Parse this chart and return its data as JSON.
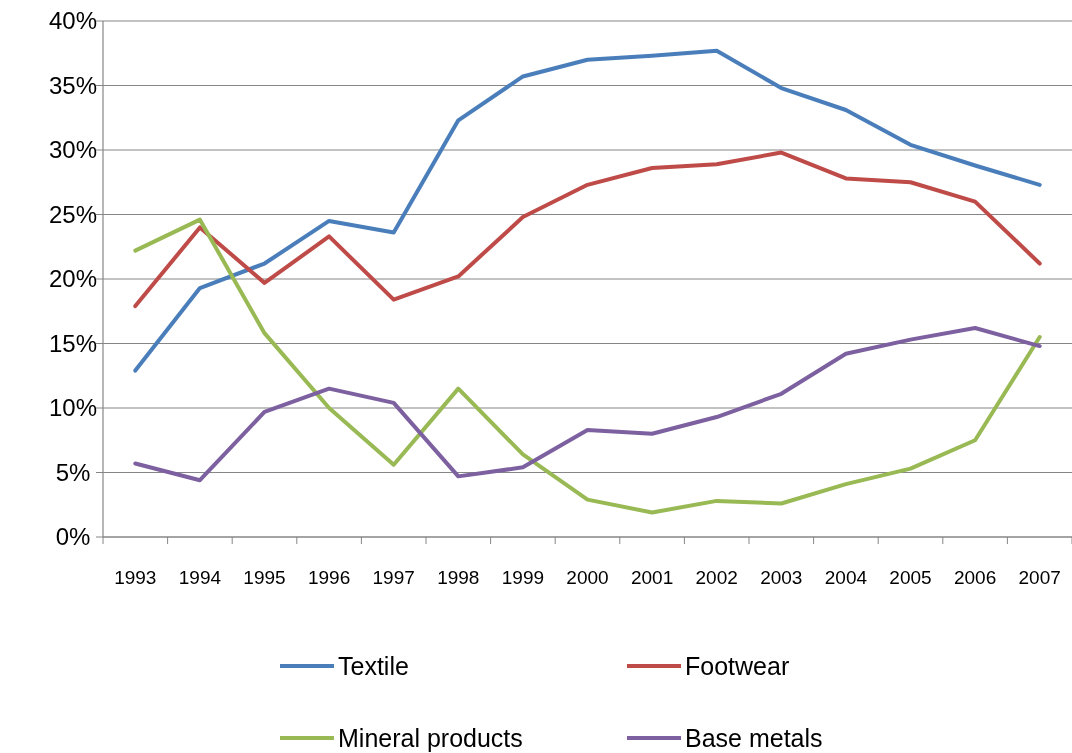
{
  "chart_data": {
    "type": "line",
    "categories": [
      "1993",
      "1994",
      "1995",
      "1996",
      "1997",
      "1998",
      "1999",
      "2000",
      "2001",
      "2002",
      "2003",
      "2004",
      "2005",
      "2006",
      "2007"
    ],
    "series": [
      {
        "name": "Textile",
        "color": "#4a7ebb",
        "values": [
          12.9,
          19.3,
          21.2,
          24.5,
          23.6,
          32.3,
          35.7,
          37.0,
          37.3,
          37.7,
          34.8,
          33.1,
          30.4,
          28.8,
          27.3
        ]
      },
      {
        "name": "Footwear",
        "color": "#be4b48",
        "values": [
          17.9,
          24.0,
          19.7,
          23.3,
          18.4,
          20.2,
          24.8,
          27.3,
          28.6,
          28.9,
          29.8,
          27.8,
          27.5,
          26.0,
          21.2
        ]
      },
      {
        "name": "Mineral products",
        "color": "#98b954",
        "values": [
          22.2,
          24.6,
          15.8,
          10.0,
          5.6,
          11.5,
          6.4,
          2.9,
          1.9,
          2.8,
          2.6,
          4.1,
          5.3,
          7.5,
          15.5
        ]
      },
      {
        "name": "Base metals",
        "color": "#7d60a0",
        "values": [
          5.7,
          4.4,
          9.7,
          11.5,
          10.4,
          4.7,
          5.4,
          8.3,
          8.0,
          9.3,
          11.1,
          14.2,
          15.3,
          16.2,
          14.8
        ]
      }
    ],
    "ylim": [
      0,
      40
    ],
    "yticks": [
      {
        "value": 0,
        "label": "0%"
      },
      {
        "value": 5,
        "label": "5%"
      },
      {
        "value": 10,
        "label": "10%"
      },
      {
        "value": 15,
        "label": "15%"
      },
      {
        "value": 20,
        "label": "20%"
      },
      {
        "value": 25,
        "label": "25%"
      },
      {
        "value": 30,
        "label": "30%"
      },
      {
        "value": 35,
        "label": "35%"
      },
      {
        "value": 40,
        "label": "40%"
      }
    ],
    "grid": "y",
    "legend": "bottom",
    "marker": "none",
    "line_style": "solid"
  }
}
